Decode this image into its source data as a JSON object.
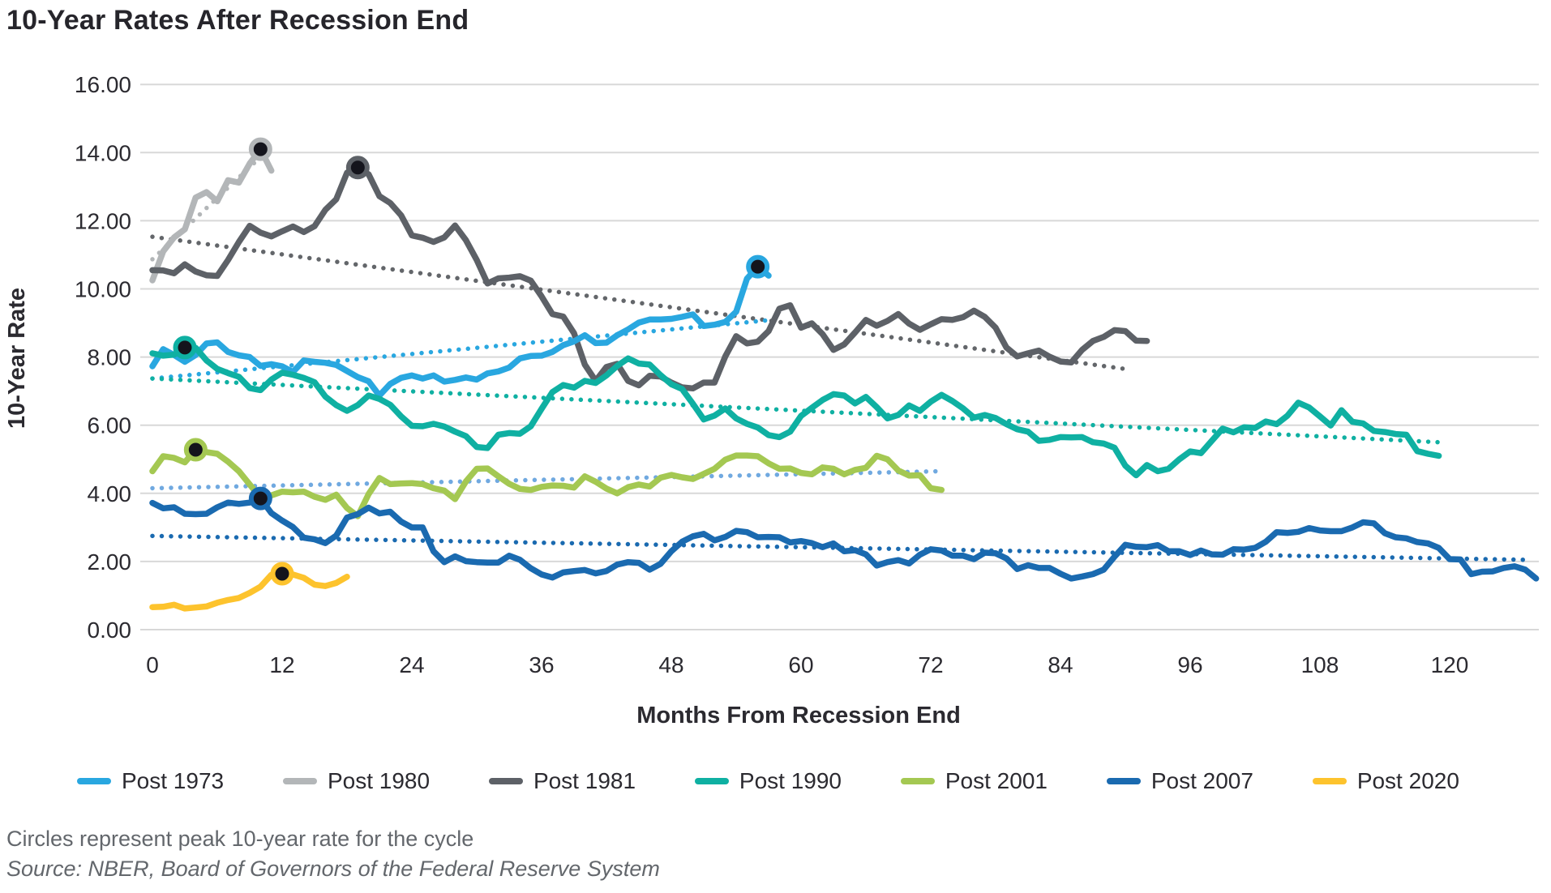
{
  "title": "10-Year Rates After Recession End",
  "footnote": "Circles represent peak 10-year rate for the cycle",
  "source": "Source: NBER, Board of Governors of the Federal Reserve System",
  "legend": [
    {
      "label": "Post 1973",
      "color": "#29a7e0"
    },
    {
      "label": "Post 1980",
      "color": "#b3b6b8"
    },
    {
      "label": "Post 1981",
      "color": "#5d6167"
    },
    {
      "label": "Post 1990",
      "color": "#0fb0a2"
    },
    {
      "label": "Post 2001",
      "color": "#a4c852"
    },
    {
      "label": "Post 2007",
      "color": "#1a6ab0"
    },
    {
      "label": "Post 2020",
      "color": "#fdc32d"
    }
  ],
  "chart_data": {
    "type": "line",
    "title": "10-Year Rates After Recession End",
    "xlabel": "Months From Recession End",
    "ylabel": "10-Year Rate",
    "xlim": [
      0,
      128
    ],
    "ylim": [
      0,
      16
    ],
    "grid": "horizontal",
    "legend_position": "bottom",
    "note": "Circles represent peak 10-year rate for the cycle; dotted lines are linear trends per cycle",
    "y_ticks": [
      {
        "label": "16.00",
        "value": 16
      },
      {
        "label": "14.00",
        "value": 14
      },
      {
        "label": "12.00",
        "value": 12
      },
      {
        "label": "10.00",
        "value": 10
      },
      {
        "label": "8.00",
        "value": 8
      },
      {
        "label": "6.00",
        "value": 6
      },
      {
        "label": "4.00",
        "value": 4
      },
      {
        "label": "2.00",
        "value": 2
      },
      {
        "label": "0.00",
        "value": 0
      }
    ],
    "x_ticks": [
      0,
      12,
      24,
      36,
      48,
      60,
      72,
      84,
      96,
      108,
      120
    ],
    "series": [
      {
        "name": "Post 1980",
        "color": "#b3b6b8",
        "trend_color": "#b3b6b8",
        "start_month": 0,
        "values": [
          10.25,
          11.1,
          11.51,
          11.75,
          12.68,
          12.84,
          12.57,
          13.19,
          13.12,
          13.68,
          14.1,
          13.47
        ],
        "peak": {
          "month": 10,
          "value": 14.1
        },
        "trend": {
          "from": [
            0,
            10.87
          ],
          "to": [
            11,
            14.17
          ]
        }
      },
      {
        "name": "Post 1981",
        "color": "#5d6167",
        "trend_color": "#63666a",
        "start_month": 0,
        "values": [
          10.55,
          10.54,
          10.46,
          10.72,
          10.51,
          10.4,
          10.38,
          10.85,
          11.38,
          11.85,
          11.65,
          11.54,
          11.69,
          11.83,
          11.67,
          11.84,
          12.32,
          12.63,
          13.41,
          13.56,
          13.36,
          12.72,
          12.52,
          12.16,
          11.57,
          11.5,
          11.38,
          11.51,
          11.86,
          11.43,
          10.85,
          10.16,
          10.31,
          10.33,
          10.37,
          10.24,
          9.78,
          9.26,
          9.19,
          8.7,
          7.78,
          7.3,
          7.71,
          7.8,
          7.3,
          7.17,
          7.45,
          7.43,
          7.25,
          7.11,
          7.08,
          7.25,
          7.25,
          8.02,
          8.61,
          8.4,
          8.45,
          8.76,
          9.42,
          9.52,
          8.86,
          8.99,
          8.67,
          8.21,
          8.37,
          8.72,
          9.09,
          8.92,
          9.06,
          9.26,
          8.98,
          8.8,
          8.96,
          9.11,
          9.09,
          9.17,
          9.36,
          9.18,
          8.86,
          8.28,
          8.02,
          8.11,
          8.19,
          8.01,
          7.87,
          7.84,
          8.21,
          8.47,
          8.59,
          8.79,
          8.76,
          8.48,
          8.47
        ],
        "peak": {
          "month": 19,
          "value": 13.56
        },
        "trend": {
          "from": [
            0,
            11.53
          ],
          "to": [
            90,
            7.65
          ]
        }
      },
      {
        "name": "Post 1973",
        "color": "#29a7e0",
        "trend_color": "#29a7e0",
        "start_month": 0,
        "values": [
          7.73,
          8.23,
          8.06,
          7.86,
          8.06,
          8.4,
          8.43,
          8.15,
          8.05,
          8.0,
          7.74,
          7.79,
          7.73,
          7.56,
          7.9,
          7.86,
          7.83,
          7.77,
          7.59,
          7.41,
          7.29,
          6.87,
          7.21,
          7.39,
          7.46,
          7.37,
          7.46,
          7.28,
          7.33,
          7.4,
          7.34,
          7.52,
          7.58,
          7.69,
          7.96,
          8.03,
          8.04,
          8.15,
          8.35,
          8.46,
          8.64,
          8.41,
          8.42,
          8.64,
          8.81,
          9.01,
          9.1,
          9.1,
          9.12,
          9.18,
          9.25,
          8.91,
          8.95,
          9.03,
          9.33,
          10.3,
          10.65,
          10.39
        ],
        "peak": {
          "month": 56,
          "value": 10.65
        },
        "trend": {
          "from": [
            0,
            7.37
          ],
          "to": [
            57,
            9.08
          ]
        }
      },
      {
        "name": "Post 1990",
        "color": "#0fb0a2",
        "trend_color": "#0fb0a2",
        "start_month": 0,
        "values": [
          8.11,
          8.04,
          8.07,
          8.28,
          8.27,
          7.9,
          7.65,
          7.53,
          7.42,
          7.09,
          7.03,
          7.34,
          7.54,
          7.48,
          7.39,
          7.26,
          6.84,
          6.59,
          6.42,
          6.59,
          6.87,
          6.77,
          6.6,
          6.26,
          5.98,
          5.97,
          6.04,
          5.96,
          5.81,
          5.68,
          5.36,
          5.33,
          5.72,
          5.77,
          5.75,
          5.97,
          6.48,
          6.97,
          7.18,
          7.1,
          7.3,
          7.24,
          7.46,
          7.74,
          7.96,
          7.81,
          7.78,
          7.47,
          7.2,
          7.06,
          6.63,
          6.17,
          6.28,
          6.49,
          6.2,
          6.04,
          5.93,
          5.71,
          5.65,
          5.81,
          6.27,
          6.51,
          6.74,
          6.91,
          6.87,
          6.64,
          6.83,
          6.53,
          6.2,
          6.3,
          6.58,
          6.42,
          6.69,
          6.89,
          6.71,
          6.49,
          6.22,
          6.3,
          6.21,
          6.03,
          5.88,
          5.81,
          5.54,
          5.57,
          5.65,
          5.64,
          5.65,
          5.5,
          5.46,
          5.34,
          4.81,
          4.53,
          4.83,
          4.65,
          4.72,
          5.0,
          5.23,
          5.18,
          5.54,
          5.9,
          5.79,
          5.94,
          5.92,
          6.11,
          6.03,
          6.28,
          6.66,
          6.52,
          6.26,
          5.99,
          6.44,
          6.1,
          6.05,
          5.83,
          5.8,
          5.74,
          5.72,
          5.24,
          5.16,
          5.1
        ],
        "peak": {
          "month": 3,
          "value": 8.28
        },
        "trend": {
          "from": [
            0,
            7.37
          ],
          "to": [
            119,
            5.5
          ]
        }
      },
      {
        "name": "Post 2001",
        "color": "#a4c852",
        "trend_color": "#70a9e0",
        "start_month": 0,
        "values": [
          4.65,
          5.09,
          5.04,
          4.91,
          5.28,
          5.21,
          5.16,
          4.93,
          4.65,
          4.26,
          3.87,
          3.94,
          4.05,
          4.03,
          4.05,
          3.9,
          3.81,
          3.96,
          3.57,
          3.33,
          3.98,
          4.45,
          4.27,
          4.29,
          4.3,
          4.27,
          4.15,
          4.08,
          3.83,
          4.35,
          4.72,
          4.73,
          4.5,
          4.28,
          4.13,
          4.1,
          4.19,
          4.23,
          4.22,
          4.17,
          4.5,
          4.34,
          4.14,
          4.0,
          4.18,
          4.26,
          4.2,
          4.46,
          4.54,
          4.47,
          4.42,
          4.57,
          4.72,
          4.99,
          5.11,
          5.11,
          5.09,
          4.88,
          4.72,
          4.73,
          4.6,
          4.56,
          4.76,
          4.72,
          4.56,
          4.69,
          4.75,
          5.1,
          5.0,
          4.67,
          4.52,
          4.53,
          4.15,
          4.1
        ],
        "peak": {
          "month": 4,
          "value": 5.28
        },
        "trend": {
          "from": [
            0,
            4.15
          ],
          "to": [
            73,
            4.65
          ]
        }
      },
      {
        "name": "Post 2007",
        "color": "#1a6ab0",
        "trend_color": "#1a6ab0",
        "start_month": 0,
        "values": [
          3.72,
          3.56,
          3.59,
          3.4,
          3.39,
          3.4,
          3.59,
          3.73,
          3.69,
          3.73,
          3.85,
          3.42,
          3.2,
          3.01,
          2.7,
          2.65,
          2.54,
          2.76,
          3.29,
          3.39,
          3.58,
          3.41,
          3.46,
          3.17,
          3.0,
          3.0,
          2.3,
          1.98,
          2.15,
          2.01,
          1.98,
          1.97,
          1.97,
          2.17,
          2.05,
          1.8,
          1.62,
          1.53,
          1.68,
          1.72,
          1.75,
          1.65,
          1.72,
          1.91,
          1.98,
          1.96,
          1.76,
          1.93,
          2.3,
          2.58,
          2.74,
          2.81,
          2.62,
          2.72,
          2.9,
          2.86,
          2.71,
          2.72,
          2.71,
          2.56,
          2.6,
          2.54,
          2.42,
          2.53,
          2.3,
          2.33,
          2.21,
          1.88,
          1.98,
          2.04,
          1.94,
          2.2,
          2.36,
          2.32,
          2.17,
          2.17,
          2.07,
          2.26,
          2.24,
          2.09,
          1.78,
          1.89,
          1.81,
          1.81,
          1.64,
          1.5,
          1.56,
          1.63,
          1.76,
          2.14,
          2.49,
          2.43,
          2.42,
          2.48,
          2.3,
          2.3,
          2.19,
          2.32,
          2.21,
          2.2,
          2.36,
          2.35,
          2.4,
          2.58,
          2.86,
          2.84,
          2.87,
          2.98,
          2.91,
          2.89,
          2.89,
          3.0,
          3.15,
          3.12,
          2.83,
          2.71,
          2.68,
          2.57,
          2.53,
          2.4,
          2.07,
          2.06,
          1.63,
          1.7,
          1.71,
          1.81,
          1.86,
          1.76,
          1.5
        ],
        "peak": {
          "month": 10,
          "value": 3.85
        },
        "trend": {
          "from": [
            0,
            2.75
          ],
          "to": [
            127,
            2.05
          ]
        }
      },
      {
        "name": "Post 2020",
        "color": "#fdc32d",
        "trend_color": null,
        "start_month": 0,
        "values": [
          0.66,
          0.67,
          0.73,
          0.62,
          0.65,
          0.68,
          0.79,
          0.87,
          0.93,
          1.08,
          1.26,
          1.61,
          1.64,
          1.62,
          1.52,
          1.32,
          1.28,
          1.37,
          1.55
        ],
        "peak": {
          "month": 12,
          "value": 1.64
        },
        "trend": null
      }
    ]
  }
}
